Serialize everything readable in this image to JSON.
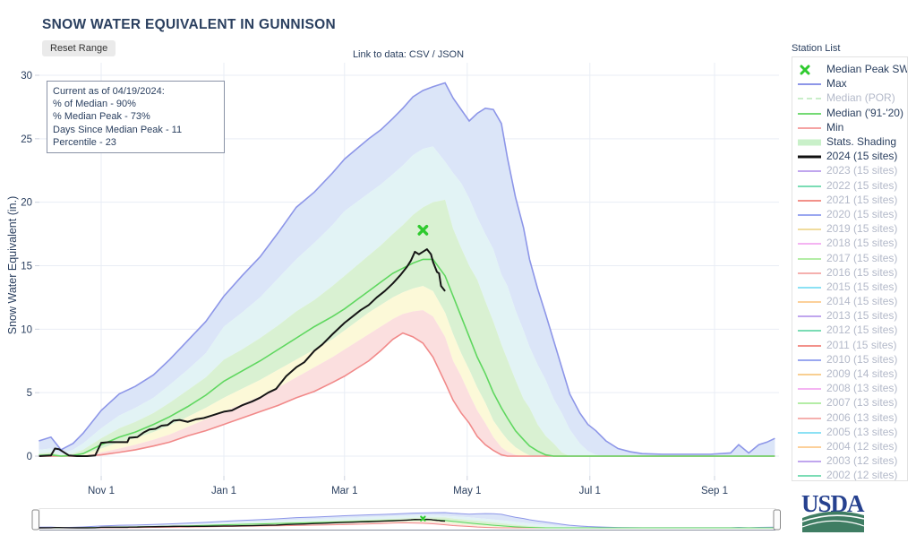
{
  "title": "SNOW WATER EQUIVALENT IN GUNNISON",
  "controls": {
    "reset_button": "Reset Range",
    "data_links": "Link to data: CSV / JSON"
  },
  "info_box": {
    "lines": [
      "Current as of 04/19/2024:",
      "% of Median - 90%",
      "% Median Peak - 73%",
      "Days Since Median Peak - 11",
      "Percentile - 23"
    ]
  },
  "station_list_label": "Station List",
  "usda_logo_text": "USDA",
  "legend": {
    "items": [
      {
        "label": "Median Peak SWE",
        "kind": "x",
        "color": "#2fca2f",
        "muted": false
      },
      {
        "label": "Max",
        "kind": "line",
        "color": "#8d96e8",
        "muted": false
      },
      {
        "label": "Median (POR)",
        "kind": "dash",
        "color": "#c9eec9",
        "muted": true
      },
      {
        "label": "Median ('91-'20)",
        "kind": "line",
        "color": "#74da74",
        "muted": false
      },
      {
        "label": "Min",
        "kind": "line",
        "color": "#f5a3a3",
        "muted": false
      },
      {
        "label": "Stats. Shading",
        "kind": "band",
        "color": "#c9f0c9",
        "muted": false
      },
      {
        "label": "2024 (15 sites)",
        "kind": "line2",
        "color": "#111111",
        "muted": false
      },
      {
        "label": "2023 (15 sites)",
        "kind": "line",
        "color": "#c0a6ee",
        "muted": true
      },
      {
        "label": "2022 (15 sites)",
        "kind": "line",
        "color": "#7bdcb5",
        "muted": true
      },
      {
        "label": "2021 (15 sites)",
        "kind": "line",
        "color": "#f2918a",
        "muted": true
      },
      {
        "label": "2020 (15 sites)",
        "kind": "line",
        "color": "#9aa7f0",
        "muted": true
      },
      {
        "label": "2019 (15 sites)",
        "kind": "line",
        "color": "#f0dc9e",
        "muted": true
      },
      {
        "label": "2018 (15 sites)",
        "kind": "line",
        "color": "#f4b4f2",
        "muted": true
      },
      {
        "label": "2017 (15 sites)",
        "kind": "line",
        "color": "#b4eda6",
        "muted": true
      },
      {
        "label": "2016 (15 sites)",
        "kind": "line",
        "color": "#f5b0ae",
        "muted": true
      },
      {
        "label": "2015 (15 sites)",
        "kind": "line",
        "color": "#8ce1f4",
        "muted": true
      },
      {
        "label": "2014 (15 sites)",
        "kind": "line",
        "color": "#fcd09a",
        "muted": true
      },
      {
        "label": "2013 (15 sites)",
        "kind": "line",
        "color": "#c0a6ee",
        "muted": true
      },
      {
        "label": "2012 (15 sites)",
        "kind": "line",
        "color": "#7bdcb5",
        "muted": true
      },
      {
        "label": "2011 (15 sites)",
        "kind": "line",
        "color": "#f2918a",
        "muted": true
      },
      {
        "label": "2010 (15 sites)",
        "kind": "line",
        "color": "#9aa7f0",
        "muted": true
      },
      {
        "label": "2009 (14 sites)",
        "kind": "line",
        "color": "#f8cf92",
        "muted": true
      },
      {
        "label": "2008 (13 sites)",
        "kind": "line",
        "color": "#f4b4f2",
        "muted": true
      },
      {
        "label": "2007 (13 sites)",
        "kind": "line",
        "color": "#b4eda6",
        "muted": true
      },
      {
        "label": "2006 (13 sites)",
        "kind": "line",
        "color": "#f5b0ae",
        "muted": true
      },
      {
        "label": "2005 (13 sites)",
        "kind": "line",
        "color": "#8ce1f4",
        "muted": true
      },
      {
        "label": "2004 (12 sites)",
        "kind": "line",
        "color": "#fcd09a",
        "muted": true
      },
      {
        "label": "2003 (12 sites)",
        "kind": "line",
        "color": "#c0a6ee",
        "muted": true
      },
      {
        "label": "2002 (12 sites)",
        "kind": "line",
        "color": "#7bdcb5",
        "muted": true
      }
    ]
  },
  "chart_data": {
    "type": "area",
    "title": "SNOW WATER EQUIVALENT IN GUNNISON",
    "xlabel": "",
    "ylabel": "Snow Water Equivalent (in.)",
    "ylim": [
      0,
      30
    ],
    "xlim_days": [
      0,
      366
    ],
    "grid": true,
    "legend_position": "right",
    "y_ticks": [
      0,
      5,
      10,
      15,
      20,
      25,
      30
    ],
    "x_ticks": [
      "Nov 1",
      "Jan 1",
      "Mar 1",
      "May 1",
      "Jul 1",
      "Sep 1"
    ],
    "x_tick_days": [
      31,
      92,
      152,
      213,
      274,
      336
    ],
    "days": [
      0,
      6,
      11,
      17,
      22,
      31,
      40,
      48,
      57,
      65,
      74,
      83,
      92,
      101,
      110,
      119,
      128,
      137,
      146,
      152,
      158,
      164,
      170,
      176,
      181,
      186,
      191,
      196,
      202,
      206,
      210,
      214,
      218,
      222,
      226,
      230,
      233,
      237,
      241,
      244,
      248,
      252,
      256,
      260,
      264,
      269,
      273,
      277,
      282,
      288,
      294,
      300,
      310,
      322,
      334,
      344,
      348,
      353,
      358,
      362,
      366
    ],
    "series": {
      "max": [
        1.2,
        1.5,
        0.5,
        1.0,
        1.8,
        3.6,
        4.9,
        5.5,
        6.4,
        7.6,
        9.1,
        10.6,
        12.6,
        14.2,
        15.7,
        17.6,
        19.6,
        20.8,
        22.3,
        23.4,
        24.2,
        25.0,
        25.7,
        26.6,
        27.4,
        28.3,
        28.8,
        29.1,
        29.4,
        28.2,
        27.3,
        26.4,
        27.0,
        27.4,
        27.3,
        26.2,
        23.5,
        20.4,
        18.0,
        15.5,
        13.2,
        11.2,
        9.1,
        7.0,
        4.9,
        3.4,
        2.5,
        2.0,
        1.2,
        0.6,
        0.35,
        0.2,
        0.15,
        0.15,
        0.15,
        0.25,
        0.9,
        0.25,
        0.9,
        1.1,
        1.4
      ],
      "p90": [
        0.5,
        0.6,
        0.2,
        0.5,
        1.0,
        2.2,
        3.2,
        3.8,
        4.6,
        5.6,
        6.8,
        8.1,
        10.2,
        11.3,
        12.5,
        14.0,
        15.5,
        16.8,
        18.2,
        19.3,
        20.0,
        20.7,
        21.4,
        22.2,
        22.9,
        23.7,
        24.2,
        24.4,
        23.2,
        22.3,
        21.5,
        20.3,
        18.8,
        17.5,
        16.3,
        14.3,
        13.4,
        11.5,
        9.9,
        8.6,
        7.2,
        6.0,
        4.5,
        3.4,
        2.1,
        1.0,
        0.4,
        0.1,
        0,
        0,
        0,
        0,
        0,
        0,
        0,
        0,
        0,
        0,
        0,
        0,
        0
      ],
      "p70": [
        0.2,
        0.3,
        0.1,
        0.2,
        0.5,
        1.4,
        2.2,
        2.7,
        3.4,
        4.2,
        5.2,
        6.2,
        7.6,
        8.4,
        9.3,
        10.3,
        11.4,
        12.3,
        13.4,
        14.2,
        15.0,
        15.8,
        16.6,
        17.5,
        18.2,
        19.0,
        19.6,
        20.0,
        20.2,
        17.9,
        16.4,
        15.0,
        13.9,
        12.2,
        10.6,
        8.8,
        7.6,
        6.0,
        4.5,
        3.8,
        2.5,
        1.6,
        1.0,
        0.3,
        0,
        0,
        0,
        0,
        0,
        0,
        0,
        0,
        0,
        0,
        0,
        0,
        0,
        0,
        0,
        0,
        0
      ],
      "median": [
        0.05,
        0.1,
        0,
        0.05,
        0.2,
        0.9,
        1.5,
        1.9,
        2.5,
        3.1,
        3.9,
        4.8,
        5.9,
        6.7,
        7.5,
        8.4,
        9.3,
        10.2,
        11.0,
        11.6,
        12.3,
        13.0,
        13.7,
        14.4,
        14.8,
        15.2,
        15.5,
        15.5,
        14.2,
        12.6,
        11.0,
        9.4,
        7.8,
        6.5,
        5.0,
        3.8,
        3.0,
        2.0,
        1.3,
        0.8,
        0.4,
        0.1,
        0,
        0,
        0,
        0,
        0,
        0,
        0,
        0,
        0,
        0,
        0,
        0,
        0,
        0,
        0,
        0,
        0,
        0,
        0
      ],
      "p30": [
        0,
        0,
        0,
        0,
        0.1,
        0.6,
        1.1,
        1.4,
        1.9,
        2.4,
        3.1,
        3.8,
        4.6,
        5.3,
        6.0,
        6.8,
        7.6,
        8.4,
        9.2,
        9.9,
        10.6,
        11.3,
        11.9,
        12.5,
        12.9,
        13.2,
        13.4,
        13.0,
        11.3,
        9.6,
        8.1,
        6.8,
        5.4,
        4.2,
        2.8,
        1.9,
        1.3,
        0.7,
        0.3,
        0.05,
        0,
        0,
        0,
        0,
        0,
        0,
        0,
        0,
        0,
        0,
        0,
        0,
        0,
        0,
        0,
        0,
        0,
        0,
        0,
        0,
        0
      ],
      "p10": [
        0,
        0,
        0,
        0,
        0,
        0.3,
        0.6,
        0.9,
        1.3,
        1.7,
        2.3,
        2.9,
        3.5,
        4.1,
        4.7,
        5.4,
        6.2,
        7.0,
        7.8,
        8.4,
        9.0,
        9.6,
        10.2,
        10.8,
        11.2,
        11.4,
        11.5,
        11.0,
        9.4,
        7.5,
        6.3,
        4.9,
        3.6,
        2.6,
        1.5,
        0.7,
        0.35,
        0.1,
        0,
        0,
        0,
        0,
        0,
        0,
        0,
        0,
        0,
        0,
        0,
        0,
        0,
        0,
        0,
        0,
        0,
        0,
        0,
        0,
        0,
        0,
        0
      ],
      "min": [
        0,
        0,
        0,
        0,
        0,
        0.1,
        0.3,
        0.5,
        0.8,
        1.1,
        1.6,
        2.0,
        2.5,
        3.0,
        3.5,
        4.0,
        4.6,
        5.1,
        5.8,
        6.3,
        6.9,
        7.5,
        8.3,
        9.2,
        9.7,
        9.4,
        8.9,
        7.8,
        5.8,
        4.4,
        3.4,
        2.6,
        1.55,
        0.9,
        0.45,
        0.1,
        0,
        0,
        0,
        0,
        0,
        0,
        0,
        0,
        0,
        0,
        0,
        0,
        0,
        0,
        0,
        0,
        0,
        0,
        0,
        0,
        0,
        0,
        0,
        0,
        0
      ]
    },
    "series_2024": {
      "label": "2024 (15 sites)",
      "days": [
        0,
        6,
        8,
        10,
        12,
        15,
        19,
        24,
        28,
        31,
        35,
        40,
        44,
        45,
        49,
        52,
        55,
        58,
        61,
        64,
        67,
        70,
        74,
        78,
        82,
        86,
        90,
        92,
        96,
        101,
        106,
        110,
        114,
        118,
        123,
        128,
        132,
        137,
        141,
        146,
        150,
        152,
        156,
        160,
        164,
        168,
        172,
        176,
        180,
        183,
        185,
        187,
        189,
        191,
        193,
        195,
        196,
        198,
        199,
        200,
        202
      ],
      "values": [
        0,
        0.05,
        0.6,
        0.55,
        0.35,
        0.05,
        0,
        0,
        0.05,
        1.05,
        1.1,
        1.1,
        1.1,
        1.45,
        1.5,
        1.85,
        2.1,
        2.15,
        2.4,
        2.45,
        2.8,
        2.85,
        2.7,
        2.9,
        3.0,
        3.2,
        3.4,
        3.5,
        3.6,
        4.0,
        4.3,
        4.6,
        5.0,
        5.3,
        6.3,
        7.0,
        7.4,
        8.3,
        8.8,
        9.6,
        10.2,
        10.5,
        11.0,
        11.5,
        11.9,
        12.5,
        13.0,
        13.6,
        14.3,
        14.9,
        15.4,
        16.1,
        15.9,
        16.1,
        16.3,
        15.9,
        15.3,
        14.5,
        14.4,
        13.4,
        13.0
      ]
    },
    "median_peak_marker": {
      "label": "Median Peak SWE",
      "day": 191,
      "value": 17.8
    },
    "colors": {
      "max_line": "#8d96e8",
      "median_line": "#5fd75f",
      "min_line": "#f18989",
      "line_2024": "#151515",
      "marker_x": "#2fca2f",
      "band_max_p90": "#dbe5f8",
      "band_p90_p70": "#e2f3f5",
      "band_p70_p30": "#d9f1d2",
      "band_p30_p10": "#fcf9d8",
      "band_p10_min": "#fbdfdf",
      "grid": "#e9edf5",
      "tick_text": "#2a3f5f"
    }
  }
}
